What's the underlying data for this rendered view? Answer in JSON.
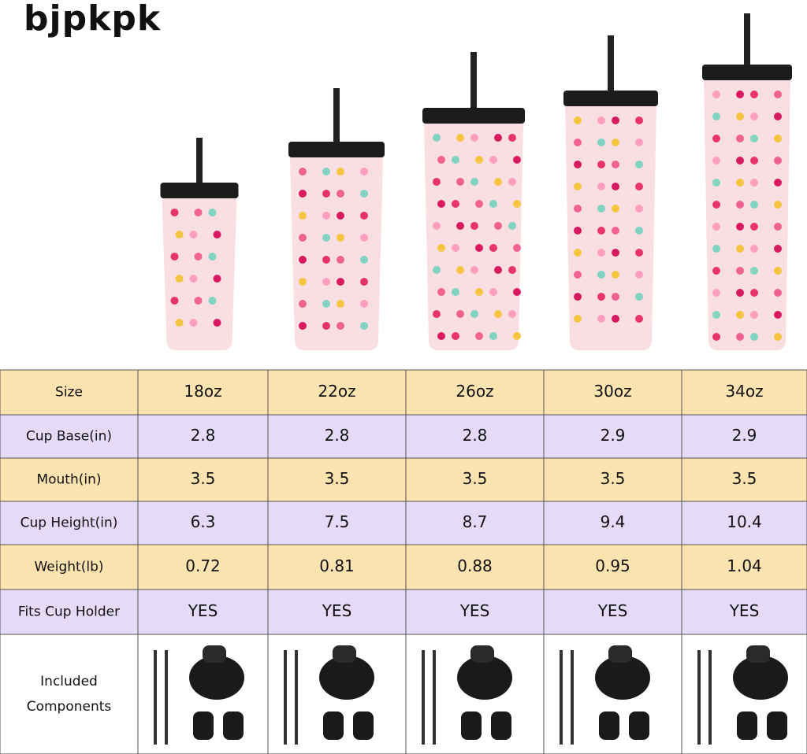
{
  "brand": "BJPKPK",
  "table": {
    "header": {
      "label": "Size",
      "values": [
        "18oz",
        "22oz",
        "26oz",
        "30oz",
        "34oz"
      ]
    },
    "rows": [
      {
        "label": "Cup Base(in)",
        "values": [
          2.8,
          2.8,
          2.8,
          2.9,
          2.9
        ]
      },
      {
        "label": "Mouth(in)",
        "values": [
          3.5,
          3.5,
          3.5,
          3.5,
          3.5
        ]
      },
      {
        "label": "Cup Height(in)",
        "values": [
          6.3,
          7.5,
          8.7,
          9.4,
          10.4
        ]
      },
      {
        "label": "Weight(lb)",
        "values": [
          0.72,
          0.81,
          0.88,
          0.95,
          1.04
        ]
      },
      {
        "label": "Fits Cup Holder",
        "values": [
          "YES",
          "YES",
          "YES",
          "YES",
          "YES"
        ]
      }
    ],
    "components_label": [
      "Included",
      "Components"
    ]
  }
}
